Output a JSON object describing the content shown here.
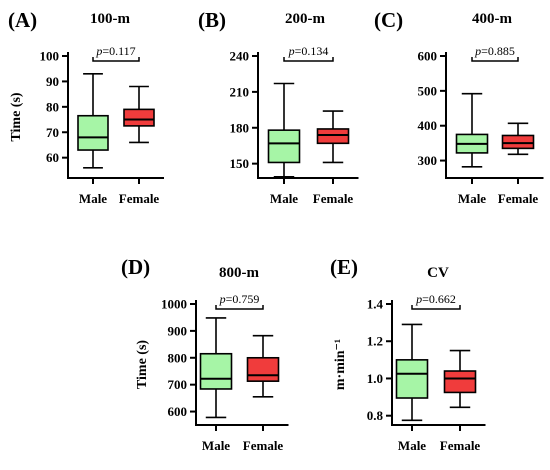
{
  "colors": {
    "male": "#a6f5a6",
    "female": "#f03c3c",
    "axis": "#000000"
  },
  "chart_data": [
    {
      "type": "box",
      "panel": "(A)",
      "title": "100-m",
      "ylabel": "Time (s)",
      "ylim": [
        52,
        100
      ],
      "yticks": [
        60,
        70,
        80,
        90,
        100
      ],
      "ytick_labels": [
        "60",
        "70",
        "80",
        "90",
        "100"
      ],
      "categories": [
        "Male",
        "Female"
      ],
      "boxes": [
        {
          "min": 56,
          "q1": 63,
          "median": 68,
          "q3": 76.5,
          "max": 93
        },
        {
          "min": 66,
          "q1": 72.5,
          "median": 75,
          "q3": 79,
          "max": 88
        }
      ],
      "p_prefix": "p",
      "p_value": "=0.117"
    },
    {
      "type": "box",
      "panel": "(B)",
      "title": "200-m",
      "ylabel": "",
      "ylim": [
        138,
        240
      ],
      "yticks": [
        150,
        180,
        210,
        240
      ],
      "ytick_labels": [
        "150",
        "180",
        "210",
        "240"
      ],
      "categories": [
        "Male",
        "Female"
      ],
      "boxes": [
        {
          "min": 139,
          "q1": 151,
          "median": 167,
          "q3": 178,
          "max": 217
        },
        {
          "min": 151,
          "q1": 167,
          "median": 174,
          "q3": 179,
          "max": 194
        }
      ],
      "p_prefix": "p",
      "p_value": "=0.134"
    },
    {
      "type": "box",
      "panel": "(C)",
      "title": "400-m",
      "ylabel": "",
      "ylim": [
        250,
        600
      ],
      "yticks": [
        300,
        400,
        500,
        600
      ],
      "ytick_labels": [
        "300",
        "400",
        "500",
        "600"
      ],
      "categories": [
        "Male",
        "Female"
      ],
      "boxes": [
        {
          "min": 282,
          "q1": 322,
          "median": 348,
          "q3": 375,
          "max": 492
        },
        {
          "min": 318,
          "q1": 335,
          "median": 350,
          "q3": 372,
          "max": 407
        }
      ],
      "p_prefix": "p",
      "p_value": "=0.885"
    },
    {
      "type": "box",
      "panel": "(D)",
      "title": "800-m",
      "ylabel": "Time (s)",
      "ylim": [
        550,
        1000
      ],
      "yticks": [
        600,
        700,
        800,
        900,
        1000
      ],
      "ytick_labels": [
        "600",
        "700",
        "800",
        "900",
        "1000"
      ],
      "categories": [
        "Male",
        "Female"
      ],
      "boxes": [
        {
          "min": 578,
          "q1": 684,
          "median": 722,
          "q3": 815,
          "max": 948
        },
        {
          "min": 655,
          "q1": 713,
          "median": 735,
          "q3": 800,
          "max": 882
        }
      ],
      "p_prefix": "p",
      "p_value": "=0.759"
    },
    {
      "type": "box",
      "panel": "(E)",
      "title": "CV",
      "ylabel": "m·min⁻¹",
      "ylim": [
        0.75,
        1.4
      ],
      "yticks": [
        0.8,
        1.0,
        1.2,
        1.4
      ],
      "ytick_labels": [
        "0.8",
        "1.0",
        "1.2",
        "1.4"
      ],
      "categories": [
        "Male",
        "Female"
      ],
      "boxes": [
        {
          "min": 0.775,
          "q1": 0.895,
          "median": 1.025,
          "q3": 1.1,
          "max": 1.29
        },
        {
          "min": 0.845,
          "q1": 0.925,
          "median": 1.0,
          "q3": 1.04,
          "max": 1.15
        }
      ],
      "p_prefix": "p",
      "p_value": "=0.662"
    }
  ]
}
